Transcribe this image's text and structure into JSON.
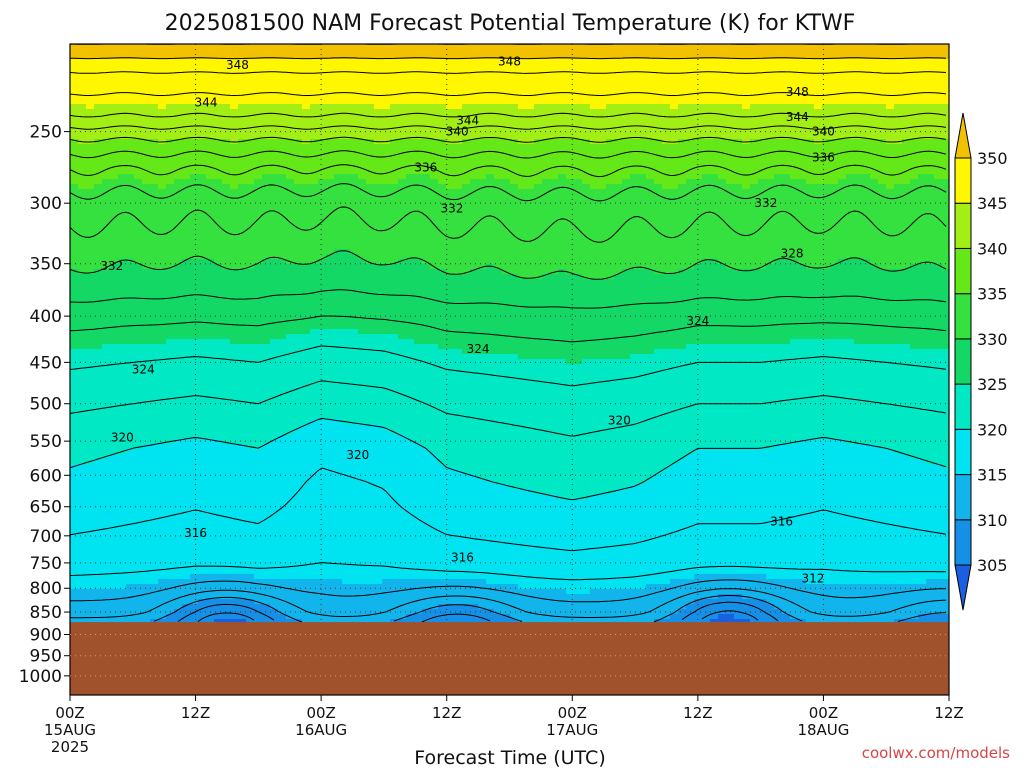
{
  "chart_data": {
    "type": "heatmap",
    "title": "2025081500 NAM Forecast Potential Temperature (K) for KTWF",
    "xlabel": "Forecast Time (UTC)",
    "ylabel": "",
    "credit": "coolwx.com/models",
    "x_ticks": [
      {
        "hour": 0,
        "label": "00Z",
        "date": "15AUG",
        "year": "2025"
      },
      {
        "hour": 12,
        "label": "12Z",
        "date": "",
        "year": ""
      },
      {
        "hour": 24,
        "label": "00Z",
        "date": "16AUG",
        "year": ""
      },
      {
        "hour": 36,
        "label": "12Z",
        "date": "",
        "year": ""
      },
      {
        "hour": 48,
        "label": "00Z",
        "date": "17AUG",
        "year": ""
      },
      {
        "hour": 60,
        "label": "12Z",
        "date": "",
        "year": ""
      },
      {
        "hour": 72,
        "label": "00Z",
        "date": "18AUG",
        "year": ""
      },
      {
        "hour": 84,
        "label": "12Z",
        "date": "",
        "year": ""
      }
    ],
    "x_range_hours": [
      0,
      84
    ],
    "y_ticks": [
      250,
      300,
      350,
      400,
      450,
      500,
      550,
      600,
      650,
      700,
      750,
      800,
      850,
      900,
      950,
      1000
    ],
    "y_range_hPa": [
      200,
      1050
    ],
    "y_scale": "log",
    "ground_pressure_hPa": 872,
    "ground_color": "#a0522d",
    "colorbar": {
      "levels": [
        305,
        310,
        315,
        320,
        325,
        330,
        335,
        340,
        345,
        350
      ],
      "colors": [
        "#1a5fe0",
        "#1690e6",
        "#12b4ec",
        "#00e4f2",
        "#00e9c4",
        "#14d866",
        "#35e13e",
        "#64e818",
        "#a3ee14",
        "#fff700",
        "#f2c200"
      ]
    },
    "contour_interval_K": 2,
    "theta_profile": [
      {
        "p": 200,
        "theta": 352
      },
      {
        "p": 215,
        "theta": 348
      },
      {
        "p": 240,
        "theta": 344
      },
      {
        "p": 255,
        "theta": 340
      },
      {
        "p": 275,
        "theta": 336
      },
      {
        "p": 300,
        "theta": 333
      },
      {
        "p": 335,
        "theta": 331
      },
      {
        "p": 370,
        "theta": 329
      },
      {
        "p": 410,
        "theta": 326
      },
      {
        "p": 450,
        "theta": 324
      },
      {
        "p": 500,
        "theta": 322
      },
      {
        "p": 560,
        "theta": 320
      },
      {
        "p": 650,
        "theta": 318.5
      },
      {
        "p": 740,
        "theta": 317
      },
      {
        "p": 800,
        "theta": 315
      },
      {
        "p": 850,
        "theta": 313
      },
      {
        "p": 875,
        "theta": 311
      }
    ],
    "time_perturbation": [
      {
        "hour": 0,
        "dtheta": 0.5
      },
      {
        "hour": 6,
        "dtheta": 0
      },
      {
        "hour": 12,
        "dtheta": -0.5
      },
      {
        "hour": 18,
        "dtheta": 0
      },
      {
        "hour": 24,
        "dtheta": -1.5
      },
      {
        "hour": 30,
        "dtheta": -1
      },
      {
        "hour": 36,
        "dtheta": 0.5
      },
      {
        "hour": 42,
        "dtheta": 1
      },
      {
        "hour": 48,
        "dtheta": 1.5
      },
      {
        "hour": 54,
        "dtheta": 1
      },
      {
        "hour": 60,
        "dtheta": 0
      },
      {
        "hour": 66,
        "dtheta": 0
      },
      {
        "hour": 72,
        "dtheta": -0.5
      },
      {
        "hour": 78,
        "dtheta": 0
      },
      {
        "hour": 84,
        "dtheta": 0.5
      }
    ],
    "boundary_layer_cells": [
      {
        "hour": 15,
        "p": 862,
        "theta": 305
      },
      {
        "hour": 37,
        "p": 865,
        "theta": 307
      },
      {
        "hour": 63,
        "p": 858,
        "theta": 305
      },
      {
        "hour": 84,
        "p": 862,
        "theta": 309
      }
    ],
    "contour_labels": [
      {
        "text": "348",
        "hour": 16,
        "p": 211
      },
      {
        "text": "348",
        "hour": 42,
        "p": 209
      },
      {
        "text": "348",
        "hour": 69.5,
        "p": 226
      },
      {
        "text": "344",
        "hour": 13,
        "p": 232
      },
      {
        "text": "344",
        "hour": 38,
        "p": 243
      },
      {
        "text": "344",
        "hour": 69.5,
        "p": 241
      },
      {
        "text": "340",
        "hour": 37,
        "p": 250
      },
      {
        "text": "340",
        "hour": 72,
        "p": 250
      },
      {
        "text": "336",
        "hour": 34,
        "p": 274
      },
      {
        "text": "336",
        "hour": 72,
        "p": 267
      },
      {
        "text": "332",
        "hour": 36.5,
        "p": 304
      },
      {
        "text": "332",
        "hour": 66.5,
        "p": 300
      },
      {
        "text": "332",
        "hour": 4,
        "p": 352
      },
      {
        "text": "328",
        "hour": 69,
        "p": 341
      },
      {
        "text": "324",
        "hour": 60,
        "p": 405
      },
      {
        "text": "324",
        "hour": 39,
        "p": 435
      },
      {
        "text": "324",
        "hour": 7,
        "p": 458
      },
      {
        "text": "320",
        "hour": 52.5,
        "p": 522
      },
      {
        "text": "320",
        "hour": 5,
        "p": 545
      },
      {
        "text": "320",
        "hour": 27.5,
        "p": 570
      },
      {
        "text": "316",
        "hour": 12,
        "p": 695
      },
      {
        "text": "316",
        "hour": 68,
        "p": 675
      },
      {
        "text": "316",
        "hour": 37.5,
        "p": 740
      },
      {
        "text": "312",
        "hour": 71,
        "p": 780
      }
    ]
  }
}
